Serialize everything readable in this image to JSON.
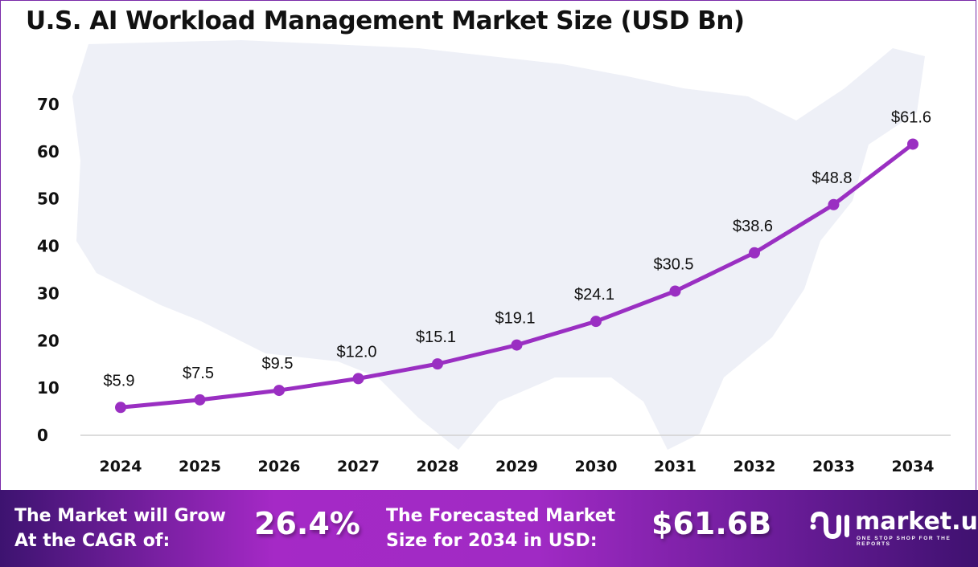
{
  "chart_data": {
    "type": "line",
    "title": "U.S. AI Workload Management Market Size (USD Bn)",
    "xlabel": "",
    "ylabel": "",
    "categories": [
      "2024",
      "2025",
      "2026",
      "2027",
      "2028",
      "2029",
      "2030",
      "2031",
      "2032",
      "2033",
      "2034"
    ],
    "values": [
      5.9,
      7.5,
      9.5,
      12.0,
      15.1,
      19.1,
      24.1,
      30.5,
      38.6,
      48.8,
      61.6
    ],
    "data_labels": [
      "$5.9",
      "$7.5",
      "$9.5",
      "$12.0",
      "$15.1",
      "$19.1",
      "$24.1",
      "$30.5",
      "$38.6",
      "$48.8",
      "$61.6"
    ],
    "yticks": [
      "0",
      "10",
      "20",
      "30",
      "40",
      "50",
      "60",
      "70"
    ],
    "ylim": [
      0,
      70
    ],
    "grid": false,
    "line_color": "#9a2fc2"
  },
  "footer": {
    "cagr_label_1": "The Market will Grow",
    "cagr_label_2": "At the CAGR of:",
    "cagr_value": "26.4%",
    "forecast_label_1": "The Forecasted Market",
    "forecast_label_2": "Size for 2034 in USD:",
    "forecast_value": "$61.6B",
    "brand": "market.us",
    "tagline": "ONE STOP SHOP FOR THE REPORTS"
  }
}
